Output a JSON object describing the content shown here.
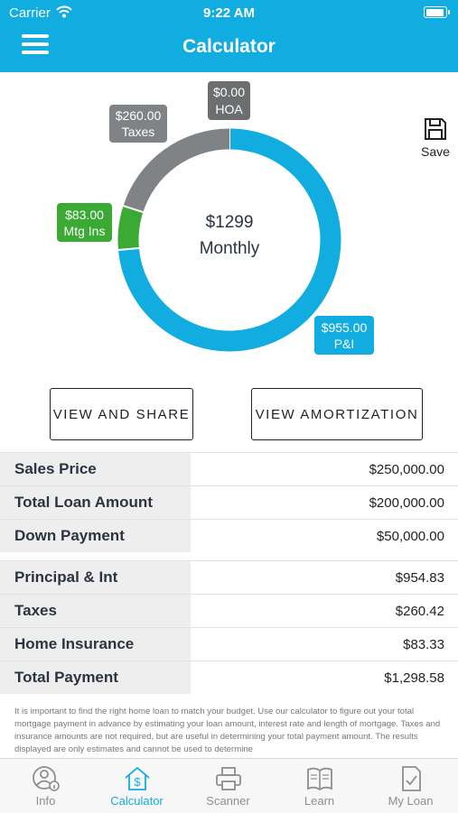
{
  "status": {
    "carrier": "Carrier",
    "time": "9:22 AM"
  },
  "header": {
    "title": "Calculator"
  },
  "chart_data": {
    "type": "pie",
    "center_value": "$1299",
    "center_label": "Monthly",
    "slices": [
      {
        "label": "P&I",
        "amount": "$955.00",
        "value": 955,
        "color": "#11ace0"
      },
      {
        "label": "Mtg Ins",
        "amount": "$83.00",
        "value": 83,
        "color": "#3aaa35"
      },
      {
        "label": "Taxes",
        "amount": "$260.00",
        "value": 260,
        "color": "#808385"
      },
      {
        "label": "HOA",
        "amount": "$0.00",
        "value": 0,
        "color": "#6d6e70"
      }
    ]
  },
  "save": {
    "label": "Save"
  },
  "buttons": {
    "share": "VIEW AND SHARE",
    "amortization": "VIEW AMORTIZATION"
  },
  "loan_rows": [
    {
      "label": "Sales Price",
      "value": "$250,000.00"
    },
    {
      "label": "Total Loan Amount",
      "value": "$200,000.00"
    },
    {
      "label": "Down Payment",
      "value": "$50,000.00"
    }
  ],
  "payment_rows": [
    {
      "label": "Principal & Int",
      "value": "$954.83"
    },
    {
      "label": "Taxes",
      "value": "$260.42"
    },
    {
      "label": "Home Insurance",
      "value": "$83.33"
    },
    {
      "label": "Total Payment",
      "value": "$1,298.58"
    }
  ],
  "disclaimer": "It is important to find the right home loan to match your budget. Use our calculator to figure out your total mortgage payment in advance by estimating your loan amount, interest rate and length of mortgage. Taxes and insurance amounts are not required, but are useful in determining your total payment amount. The results displayed are only estimates and cannot be used to determine",
  "tabs": [
    {
      "label": "Info",
      "icon": "info-user-icon"
    },
    {
      "label": "Calculator",
      "icon": "calculator-house-icon",
      "active": true
    },
    {
      "label": "Scanner",
      "icon": "scanner-icon"
    },
    {
      "label": "Learn",
      "icon": "book-icon"
    },
    {
      "label": "My Loan",
      "icon": "document-check-icon"
    }
  ]
}
